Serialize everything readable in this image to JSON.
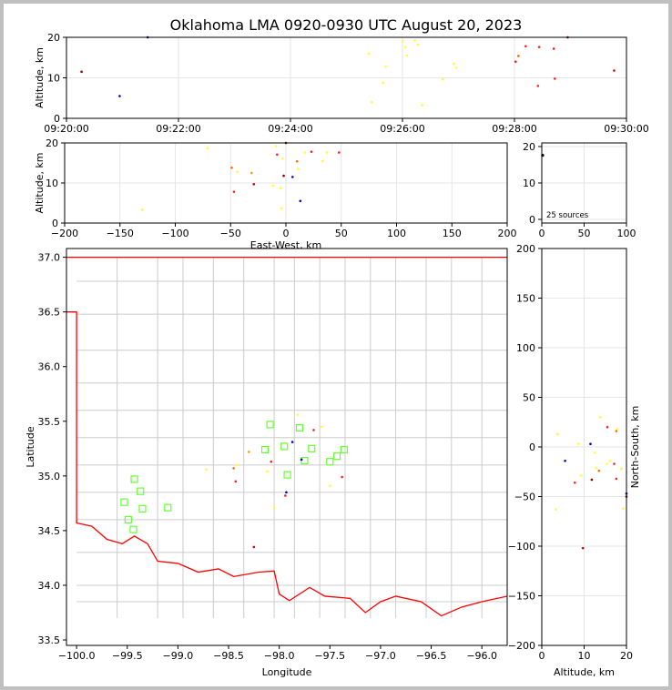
{
  "title": "Oklahoma LMA 0920-0930 UTC August 20, 2023",
  "chart_data": [
    {
      "type": "scatter",
      "name": "time-altitude",
      "xlabel": "",
      "ylabel": "Altitude, km",
      "xtick_labels": [
        "09:20:00",
        "09:22:00",
        "09:24:00",
        "09:26:00",
        "09:28:00",
        "09:30:00"
      ],
      "xlim_minutes": [
        0,
        10
      ],
      "ylim": [
        0,
        20
      ],
      "yticks": [
        0,
        10,
        20
      ],
      "points": [
        {
          "t": 0.27,
          "alt": 11.5,
          "color": "#8b0000"
        },
        {
          "t": 0.95,
          "alt": 5.5,
          "color": "#0000cc"
        },
        {
          "t": 1.45,
          "alt": 20.0,
          "color": "#0000cc"
        },
        {
          "t": 5.4,
          "alt": 16.0,
          "color": "#ffff33"
        },
        {
          "t": 5.45,
          "alt": 4.0,
          "color": "#ffff33"
        },
        {
          "t": 5.65,
          "alt": 8.8,
          "color": "#ffff33"
        },
        {
          "t": 5.7,
          "alt": 12.8,
          "color": "#ffff33"
        },
        {
          "t": 6.0,
          "alt": 19.0,
          "color": "#ffff33"
        },
        {
          "t": 6.05,
          "alt": 17.6,
          "color": "#ffff33"
        },
        {
          "t": 6.08,
          "alt": 15.5,
          "color": "#ffff33"
        },
        {
          "t": 6.22,
          "alt": 19.2,
          "color": "#ffff33"
        },
        {
          "t": 6.28,
          "alt": 18.2,
          "color": "#ffff33"
        },
        {
          "t": 6.35,
          "alt": 3.3,
          "color": "#ffff33"
        },
        {
          "t": 6.72,
          "alt": 9.6,
          "color": "#ffff33"
        },
        {
          "t": 6.92,
          "alt": 13.5,
          "color": "#ffff33"
        },
        {
          "t": 6.96,
          "alt": 12.5,
          "color": "#ffff33"
        },
        {
          "t": 8.02,
          "alt": 14.0,
          "color": "#ff2020"
        },
        {
          "t": 8.07,
          "alt": 15.4,
          "color": "#ff6600"
        },
        {
          "t": 8.2,
          "alt": 17.8,
          "color": "#ff2020"
        },
        {
          "t": 8.42,
          "alt": 8.0,
          "color": "#ff2020"
        },
        {
          "t": 8.44,
          "alt": 17.6,
          "color": "#ff2020"
        },
        {
          "t": 8.7,
          "alt": 17.2,
          "color": "#ff2020"
        },
        {
          "t": 8.72,
          "alt": 9.8,
          "color": "#ff2020"
        },
        {
          "t": 8.95,
          "alt": 20.0,
          "color": "#8b0000"
        },
        {
          "t": 9.78,
          "alt": 11.8,
          "color": "#cc0000"
        }
      ]
    },
    {
      "type": "scatter",
      "name": "east-west-altitude",
      "xlabel": "East-West, km",
      "ylabel": "Altitude, km",
      "xlim": [
        -200,
        200
      ],
      "xticks": [
        -200,
        -150,
        -100,
        -50,
        0,
        50,
        100,
        150,
        200
      ],
      "ylim": [
        0,
        20
      ],
      "yticks": [
        0,
        10,
        20
      ],
      "points": [
        {
          "x": -130,
          "alt": 3.3,
          "color": "#ffff33"
        },
        {
          "x": -71,
          "alt": 18.7,
          "color": "#ffff33"
        },
        {
          "x": -49,
          "alt": 13.8,
          "color": "#ff6600"
        },
        {
          "x": -47,
          "alt": 7.8,
          "color": "#ff2020"
        },
        {
          "x": -44,
          "alt": 12.8,
          "color": "#ffff33"
        },
        {
          "x": -31,
          "alt": 12.5,
          "color": "#ff9900"
        },
        {
          "x": -29,
          "alt": 9.7,
          "color": "#cc0000"
        },
        {
          "x": -12,
          "alt": 9.3,
          "color": "#ffff33"
        },
        {
          "x": -9,
          "alt": 19.2,
          "color": "#ffff33"
        },
        {
          "x": -8,
          "alt": 17.1,
          "color": "#ff2020"
        },
        {
          "x": -5,
          "alt": 8.7,
          "color": "#ffff33"
        },
        {
          "x": -4,
          "alt": 3.7,
          "color": "#ffff33"
        },
        {
          "x": -3,
          "alt": 16.1,
          "color": "#ffff33"
        },
        {
          "x": -2,
          "alt": 11.8,
          "color": "#8b0000"
        },
        {
          "x": 0,
          "alt": 20.0,
          "color": "#8b0000"
        },
        {
          "x": 6,
          "alt": 11.5,
          "color": "#0000cc"
        },
        {
          "x": 10,
          "alt": 15.4,
          "color": "#ff6600"
        },
        {
          "x": 11,
          "alt": 13.5,
          "color": "#ffff33"
        },
        {
          "x": 13,
          "alt": 5.5,
          "color": "#0000cc"
        },
        {
          "x": 17,
          "alt": 17.6,
          "color": "#ffff33"
        },
        {
          "x": 23,
          "alt": 17.8,
          "color": "#ff2020"
        },
        {
          "x": 33,
          "alt": 15.5,
          "color": "#ffff33"
        },
        {
          "x": 37,
          "alt": 17.6,
          "color": "#ffff33"
        },
        {
          "x": 48,
          "alt": 17.6,
          "color": "#ff2020"
        }
      ]
    },
    {
      "type": "bar",
      "name": "altitude-histogram",
      "xlim": [
        0,
        100
      ],
      "xticks": [
        0,
        50,
        100
      ],
      "ylim": [
        0,
        20
      ],
      "yticks": [
        0,
        10,
        20
      ],
      "annotation": "25 sources",
      "points": [
        {
          "x": 1,
          "alt": 17.6,
          "color": "#000000"
        }
      ]
    },
    {
      "type": "scatter",
      "name": "plan-view-map",
      "xlabel": "Longitude",
      "ylabel": "Latitude",
      "xlim": [
        -100.1,
        -95.75
      ],
      "ylim": [
        33.45,
        37.08
      ],
      "xticks": [
        -100.0,
        -99.5,
        -99.0,
        -98.5,
        -98.0,
        -97.5,
        -97.0,
        -96.5,
        -96.0
      ],
      "yticks": [
        33.5,
        34.0,
        34.5,
        35.0,
        35.5,
        36.0,
        36.5,
        37.0
      ],
      "stations": [
        {
          "lon": -99.43,
          "lat": 34.97
        },
        {
          "lon": -99.37,
          "lat": 34.86
        },
        {
          "lon": -99.53,
          "lat": 34.76
        },
        {
          "lon": -99.49,
          "lat": 34.6
        },
        {
          "lon": -99.44,
          "lat": 34.51
        },
        {
          "lon": -99.35,
          "lat": 34.7
        },
        {
          "lon": -99.1,
          "lat": 34.71
        },
        {
          "lon": -98.09,
          "lat": 35.47
        },
        {
          "lon": -98.14,
          "lat": 35.24
        },
        {
          "lon": -97.95,
          "lat": 35.27
        },
        {
          "lon": -97.8,
          "lat": 35.44
        },
        {
          "lon": -97.68,
          "lat": 35.25
        },
        {
          "lon": -97.75,
          "lat": 35.14
        },
        {
          "lon": -97.92,
          "lat": 35.01
        },
        {
          "lon": -97.5,
          "lat": 35.13
        },
        {
          "lon": -97.43,
          "lat": 35.18
        },
        {
          "lon": -97.36,
          "lat": 35.24
        }
      ],
      "points": [
        {
          "lon": -98.72,
          "lat": 35.06,
          "color": "#ffff33"
        },
        {
          "lon": -98.43,
          "lat": 34.95,
          "color": "#ff2020"
        },
        {
          "lon": -98.45,
          "lat": 35.07,
          "color": "#ff6600"
        },
        {
          "lon": -98.41,
          "lat": 35.1,
          "color": "#ffff33"
        },
        {
          "lon": -98.3,
          "lat": 35.22,
          "color": "#ff9900"
        },
        {
          "lon": -98.25,
          "lat": 34.35,
          "color": "#cc0000"
        },
        {
          "lon": -98.12,
          "lat": 35.04,
          "color": "#ffff33"
        },
        {
          "lon": -98.08,
          "lat": 35.13,
          "color": "#ff2020"
        },
        {
          "lon": -98.05,
          "lat": 34.71,
          "color": "#ffff33"
        },
        {
          "lon": -97.93,
          "lat": 34.85,
          "color": "#0000cc"
        },
        {
          "lon": -97.94,
          "lat": 34.82,
          "color": "#ff2020"
        },
        {
          "lon": -97.87,
          "lat": 35.31,
          "color": "#0000cc"
        },
        {
          "lon": -97.82,
          "lat": 35.56,
          "color": "#ffff33"
        },
        {
          "lon": -97.78,
          "lat": 35.15,
          "color": "#0000cc"
        },
        {
          "lon": -97.66,
          "lat": 35.42,
          "color": "#ff2020"
        },
        {
          "lon": -97.58,
          "lat": 35.45,
          "color": "#ffff33"
        },
        {
          "lon": -97.5,
          "lat": 34.91,
          "color": "#ffff33"
        },
        {
          "lon": -97.38,
          "lat": 34.99,
          "color": "#ff2020"
        }
      ]
    },
    {
      "type": "scatter",
      "name": "altitude-north-south",
      "xlabel": "Altitude, km",
      "ylabel": "North-South, km",
      "xlim": [
        0,
        20
      ],
      "xticks": [
        0,
        10,
        20
      ],
      "ylim": [
        -200,
        200
      ],
      "yticks": [
        -200,
        -150,
        -100,
        -50,
        0,
        50,
        100,
        150,
        200
      ],
      "points": [
        {
          "alt": 3.3,
          "y": -63,
          "color": "#ffff33"
        },
        {
          "alt": 3.7,
          "y": 13,
          "color": "#ffff33"
        },
        {
          "alt": 5.5,
          "y": -14,
          "color": "#0000cc"
        },
        {
          "alt": 7.8,
          "y": -36,
          "color": "#ff2020"
        },
        {
          "alt": 8.7,
          "y": 3,
          "color": "#ffff33"
        },
        {
          "alt": 9.3,
          "y": -29,
          "color": "#ffff33"
        },
        {
          "alt": 9.7,
          "y": -102,
          "color": "#cc0000"
        },
        {
          "alt": 11.5,
          "y": 3,
          "color": "#0000cc"
        },
        {
          "alt": 11.8,
          "y": -33,
          "color": "#8b0000"
        },
        {
          "alt": 12.5,
          "y": -6,
          "color": "#ffff33"
        },
        {
          "alt": 12.8,
          "y": -21,
          "color": "#ffff33"
        },
        {
          "alt": 13.5,
          "y": -24,
          "color": "#ff6600"
        },
        {
          "alt": 13.8,
          "y": 30,
          "color": "#ffff33"
        },
        {
          "alt": 15.4,
          "y": -17,
          "color": "#ffff33"
        },
        {
          "alt": 15.5,
          "y": 20,
          "color": "#ff2020"
        },
        {
          "alt": 16.1,
          "y": -14,
          "color": "#ffff33"
        },
        {
          "alt": 17.1,
          "y": -17,
          "color": "#ff2020"
        },
        {
          "alt": 17.6,
          "y": -32,
          "color": "#ff2020"
        },
        {
          "alt": 17.6,
          "y": 16,
          "color": "#ff6600"
        },
        {
          "alt": 17.8,
          "y": 18,
          "color": "#ffff33"
        },
        {
          "alt": 18.7,
          "y": -22,
          "color": "#ffff33"
        },
        {
          "alt": 19.2,
          "y": -62,
          "color": "#ffff33"
        },
        {
          "alt": 20.0,
          "y": -47,
          "color": "#0000cc"
        },
        {
          "alt": 20.0,
          "y": -50,
          "color": "#8b0000"
        }
      ]
    }
  ]
}
